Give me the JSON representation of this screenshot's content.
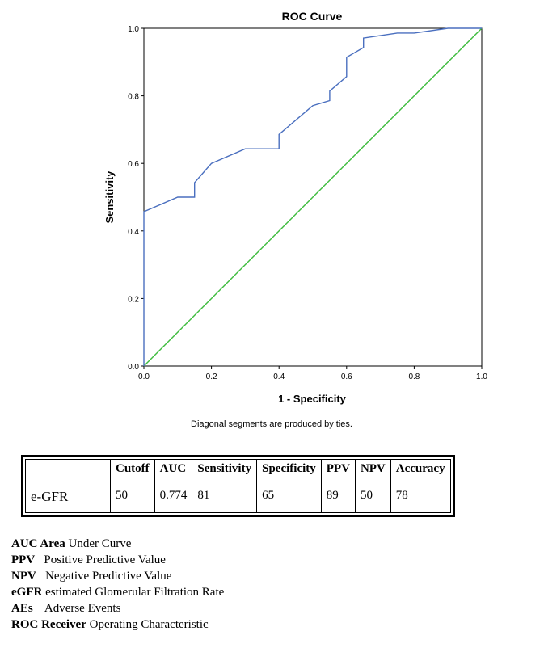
{
  "chart_data": {
    "type": "line",
    "title": "ROC Curve",
    "xlabel": "1 - Specificity",
    "ylabel": "Sensitivity",
    "xlim": [
      0,
      1
    ],
    "ylim": [
      0,
      1
    ],
    "x_ticks": [
      "0.0",
      "0.2",
      "0.4",
      "0.6",
      "0.8",
      "1.0"
    ],
    "y_ticks": [
      "0.0",
      "0.2",
      "0.4",
      "0.6",
      "0.8",
      "1.0"
    ],
    "grid": false,
    "footnote": "Diagonal segments are produced by ties.",
    "series": [
      {
        "color": "#4a6fbf",
        "x": [
          0,
          0,
          0.1,
          0.15,
          0.15,
          0.2,
          0.3,
          0.4,
          0.4,
          0.5,
          0.55,
          0.55,
          0.6,
          0.6,
          0.65,
          0.65,
          0.75,
          0.8,
          0.9,
          1.0
        ],
        "y": [
          0,
          0.457,
          0.5,
          0.5,
          0.543,
          0.6,
          0.643,
          0.643,
          0.686,
          0.771,
          0.786,
          0.814,
          0.857,
          0.914,
          0.943,
          0.971,
          0.986,
          0.986,
          1.0,
          1.0
        ]
      },
      {
        "color": "#3dbb3d",
        "x": [
          0,
          1
        ],
        "y": [
          0,
          1
        ]
      }
    ]
  },
  "table": {
    "headers": [
      "",
      "Cutoff",
      "AUC",
      "Sensitivity",
      "Specificity",
      "PPV",
      "NPV",
      "Accuracy"
    ],
    "row": [
      "e-GFR",
      "50",
      "0.774",
      "81",
      "65",
      "89",
      "50",
      "78"
    ]
  },
  "abbreviations": [
    {
      "term": "AUC Area",
      "def": " Under Curve"
    },
    {
      "term": "PPV",
      "def": "   Positive Predictive Value"
    },
    {
      "term": "NPV",
      "def": "   Negative Predictive Value"
    },
    {
      "term": "eGFR",
      "def": " estimated Glomerular Filtration Rate"
    },
    {
      "term": "AEs",
      "def": "    Adverse Events"
    },
    {
      "term": "ROC Receiver",
      "def": " Operating Characteristic"
    }
  ]
}
